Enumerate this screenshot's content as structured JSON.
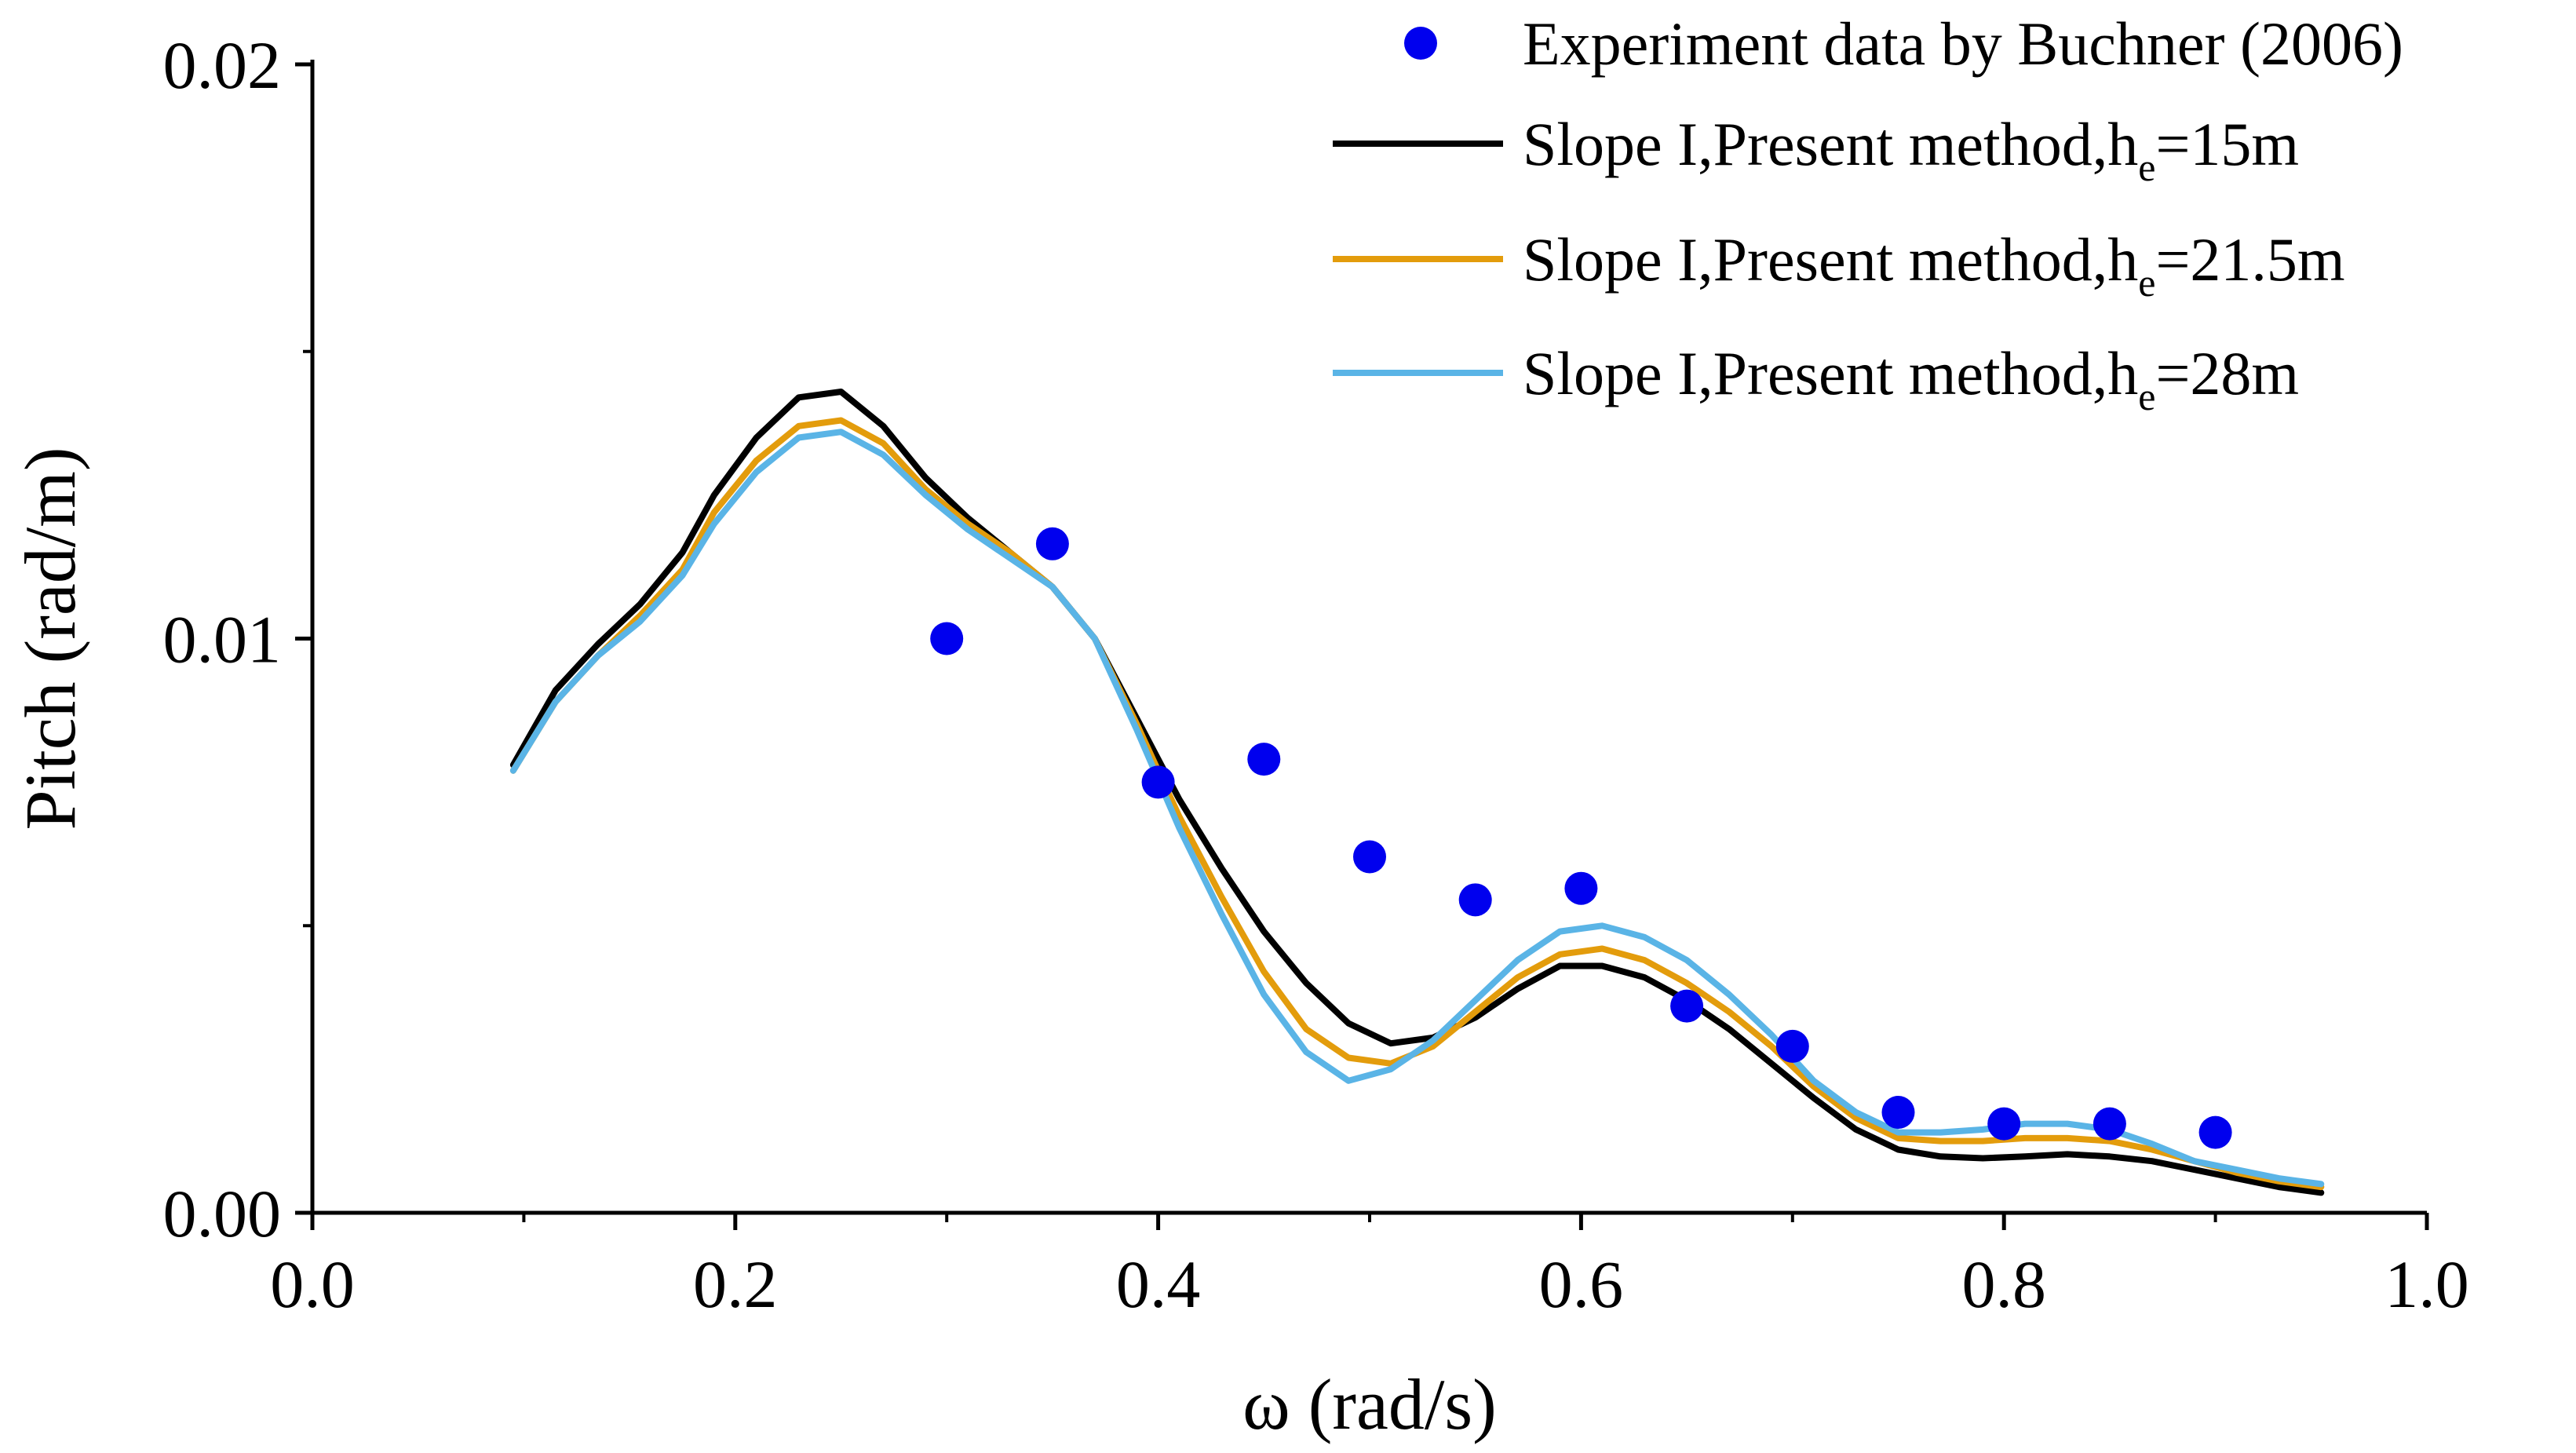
{
  "chart_data": {
    "type": "line",
    "title": "",
    "xlabel": "ω (rad/s)",
    "ylabel": "Pitch (rad/m)",
    "xlim": [
      0.0,
      1.0
    ],
    "ylim": [
      0.0,
      0.02
    ],
    "x_ticks": [
      0.0,
      0.2,
      0.4,
      0.6,
      0.8,
      1.0
    ],
    "x_tick_labels": [
      "0.0",
      "0.2",
      "0.4",
      "0.6",
      "0.8",
      "1.0"
    ],
    "y_ticks": [
      0.0,
      0.01,
      0.02
    ],
    "y_tick_labels": [
      "0.00",
      "0.01",
      "0.02"
    ],
    "grid": false,
    "legend_position": "top-right",
    "legend": [
      {
        "label": "Experiment data by Buchner (2006)",
        "sub": "",
        "tail": ""
      },
      {
        "label": "Slope I,Present method,h",
        "sub": "e",
        "tail": "=15m"
      },
      {
        "label": "Slope I,Present method,h",
        "sub": "e",
        "tail": "=21.5m"
      },
      {
        "label": "Slope I,Present method,h",
        "sub": "e",
        "tail": "=28m"
      }
    ],
    "scatter": {
      "name": "Experiment data by Buchner (2006)",
      "color": "#0000ee",
      "x": [
        0.3,
        0.35,
        0.4,
        0.45,
        0.5,
        0.55,
        0.6,
        0.65,
        0.7,
        0.75,
        0.8,
        0.85,
        0.9
      ],
      "y": [
        0.01,
        0.01165,
        0.0075,
        0.0079,
        0.0062,
        0.00545,
        0.00565,
        0.0036,
        0.0029,
        0.00175,
        0.00155,
        0.00155,
        0.0014
      ]
    },
    "series": [
      {
        "name": "Slope I,Present method,he=15m",
        "color": "#000000",
        "x": [
          0.095,
          0.115,
          0.135,
          0.155,
          0.175,
          0.19,
          0.21,
          0.23,
          0.25,
          0.27,
          0.29,
          0.31,
          0.33,
          0.35,
          0.37,
          0.39,
          0.41,
          0.43,
          0.45,
          0.47,
          0.49,
          0.51,
          0.53,
          0.55,
          0.57,
          0.59,
          0.61,
          0.63,
          0.65,
          0.67,
          0.69,
          0.71,
          0.73,
          0.75,
          0.77,
          0.79,
          0.81,
          0.83,
          0.85,
          0.87,
          0.89,
          0.91,
          0.93,
          0.95
        ],
        "y": [
          0.0078,
          0.0091,
          0.0099,
          0.0106,
          0.0115,
          0.0125,
          0.0135,
          0.0142,
          0.0143,
          0.0137,
          0.0128,
          0.0121,
          0.0115,
          0.0109,
          0.01,
          0.0086,
          0.0072,
          0.006,
          0.0049,
          0.004,
          0.0033,
          0.00295,
          0.00305,
          0.0034,
          0.0039,
          0.0043,
          0.0043,
          0.0041,
          0.0037,
          0.0032,
          0.0026,
          0.002,
          0.00145,
          0.0011,
          0.00098,
          0.00095,
          0.00098,
          0.00102,
          0.00098,
          0.0009,
          0.00075,
          0.0006,
          0.00045,
          0.00035
        ]
      },
      {
        "name": "Slope I,Present method,he=21.5m",
        "color": "#e39c0c",
        "x": [
          0.095,
          0.115,
          0.135,
          0.155,
          0.175,
          0.19,
          0.21,
          0.23,
          0.25,
          0.27,
          0.29,
          0.31,
          0.33,
          0.35,
          0.37,
          0.39,
          0.41,
          0.43,
          0.45,
          0.47,
          0.49,
          0.51,
          0.53,
          0.55,
          0.57,
          0.59,
          0.61,
          0.63,
          0.65,
          0.67,
          0.69,
          0.71,
          0.73,
          0.75,
          0.77,
          0.79,
          0.81,
          0.83,
          0.85,
          0.87,
          0.89,
          0.91,
          0.93,
          0.95
        ],
        "y": [
          0.0077,
          0.0089,
          0.0097,
          0.0104,
          0.0112,
          0.0122,
          0.0131,
          0.0137,
          0.0138,
          0.0134,
          0.0126,
          0.012,
          0.0115,
          0.0109,
          0.01,
          0.0085,
          0.0069,
          0.0055,
          0.0042,
          0.0032,
          0.0027,
          0.0026,
          0.0029,
          0.0035,
          0.0041,
          0.0045,
          0.0046,
          0.0044,
          0.004,
          0.0035,
          0.0029,
          0.0022,
          0.00165,
          0.0013,
          0.00125,
          0.00125,
          0.0013,
          0.0013,
          0.00125,
          0.0011,
          0.0009,
          0.0007,
          0.00055,
          0.00045
        ]
      },
      {
        "name": "Slope I,Present method,he=28m",
        "color": "#5ab4e6",
        "x": [
          0.095,
          0.115,
          0.135,
          0.155,
          0.175,
          0.19,
          0.21,
          0.23,
          0.25,
          0.27,
          0.29,
          0.31,
          0.33,
          0.35,
          0.37,
          0.39,
          0.41,
          0.43,
          0.45,
          0.47,
          0.49,
          0.51,
          0.53,
          0.55,
          0.57,
          0.59,
          0.61,
          0.63,
          0.65,
          0.67,
          0.69,
          0.71,
          0.73,
          0.75,
          0.77,
          0.79,
          0.81,
          0.83,
          0.85,
          0.87,
          0.89,
          0.91,
          0.93,
          0.95
        ],
        "y": [
          0.0077,
          0.0089,
          0.0097,
          0.0103,
          0.0111,
          0.012,
          0.0129,
          0.0135,
          0.0136,
          0.0132,
          0.0125,
          0.0119,
          0.0114,
          0.0109,
          0.01,
          0.0084,
          0.0067,
          0.0052,
          0.0038,
          0.0028,
          0.0023,
          0.0025,
          0.003,
          0.0037,
          0.0044,
          0.0049,
          0.005,
          0.0048,
          0.0044,
          0.0038,
          0.0031,
          0.0023,
          0.00175,
          0.0014,
          0.0014,
          0.00145,
          0.00155,
          0.00155,
          0.00145,
          0.0012,
          0.0009,
          0.00075,
          0.0006,
          0.0005
        ]
      }
    ]
  }
}
